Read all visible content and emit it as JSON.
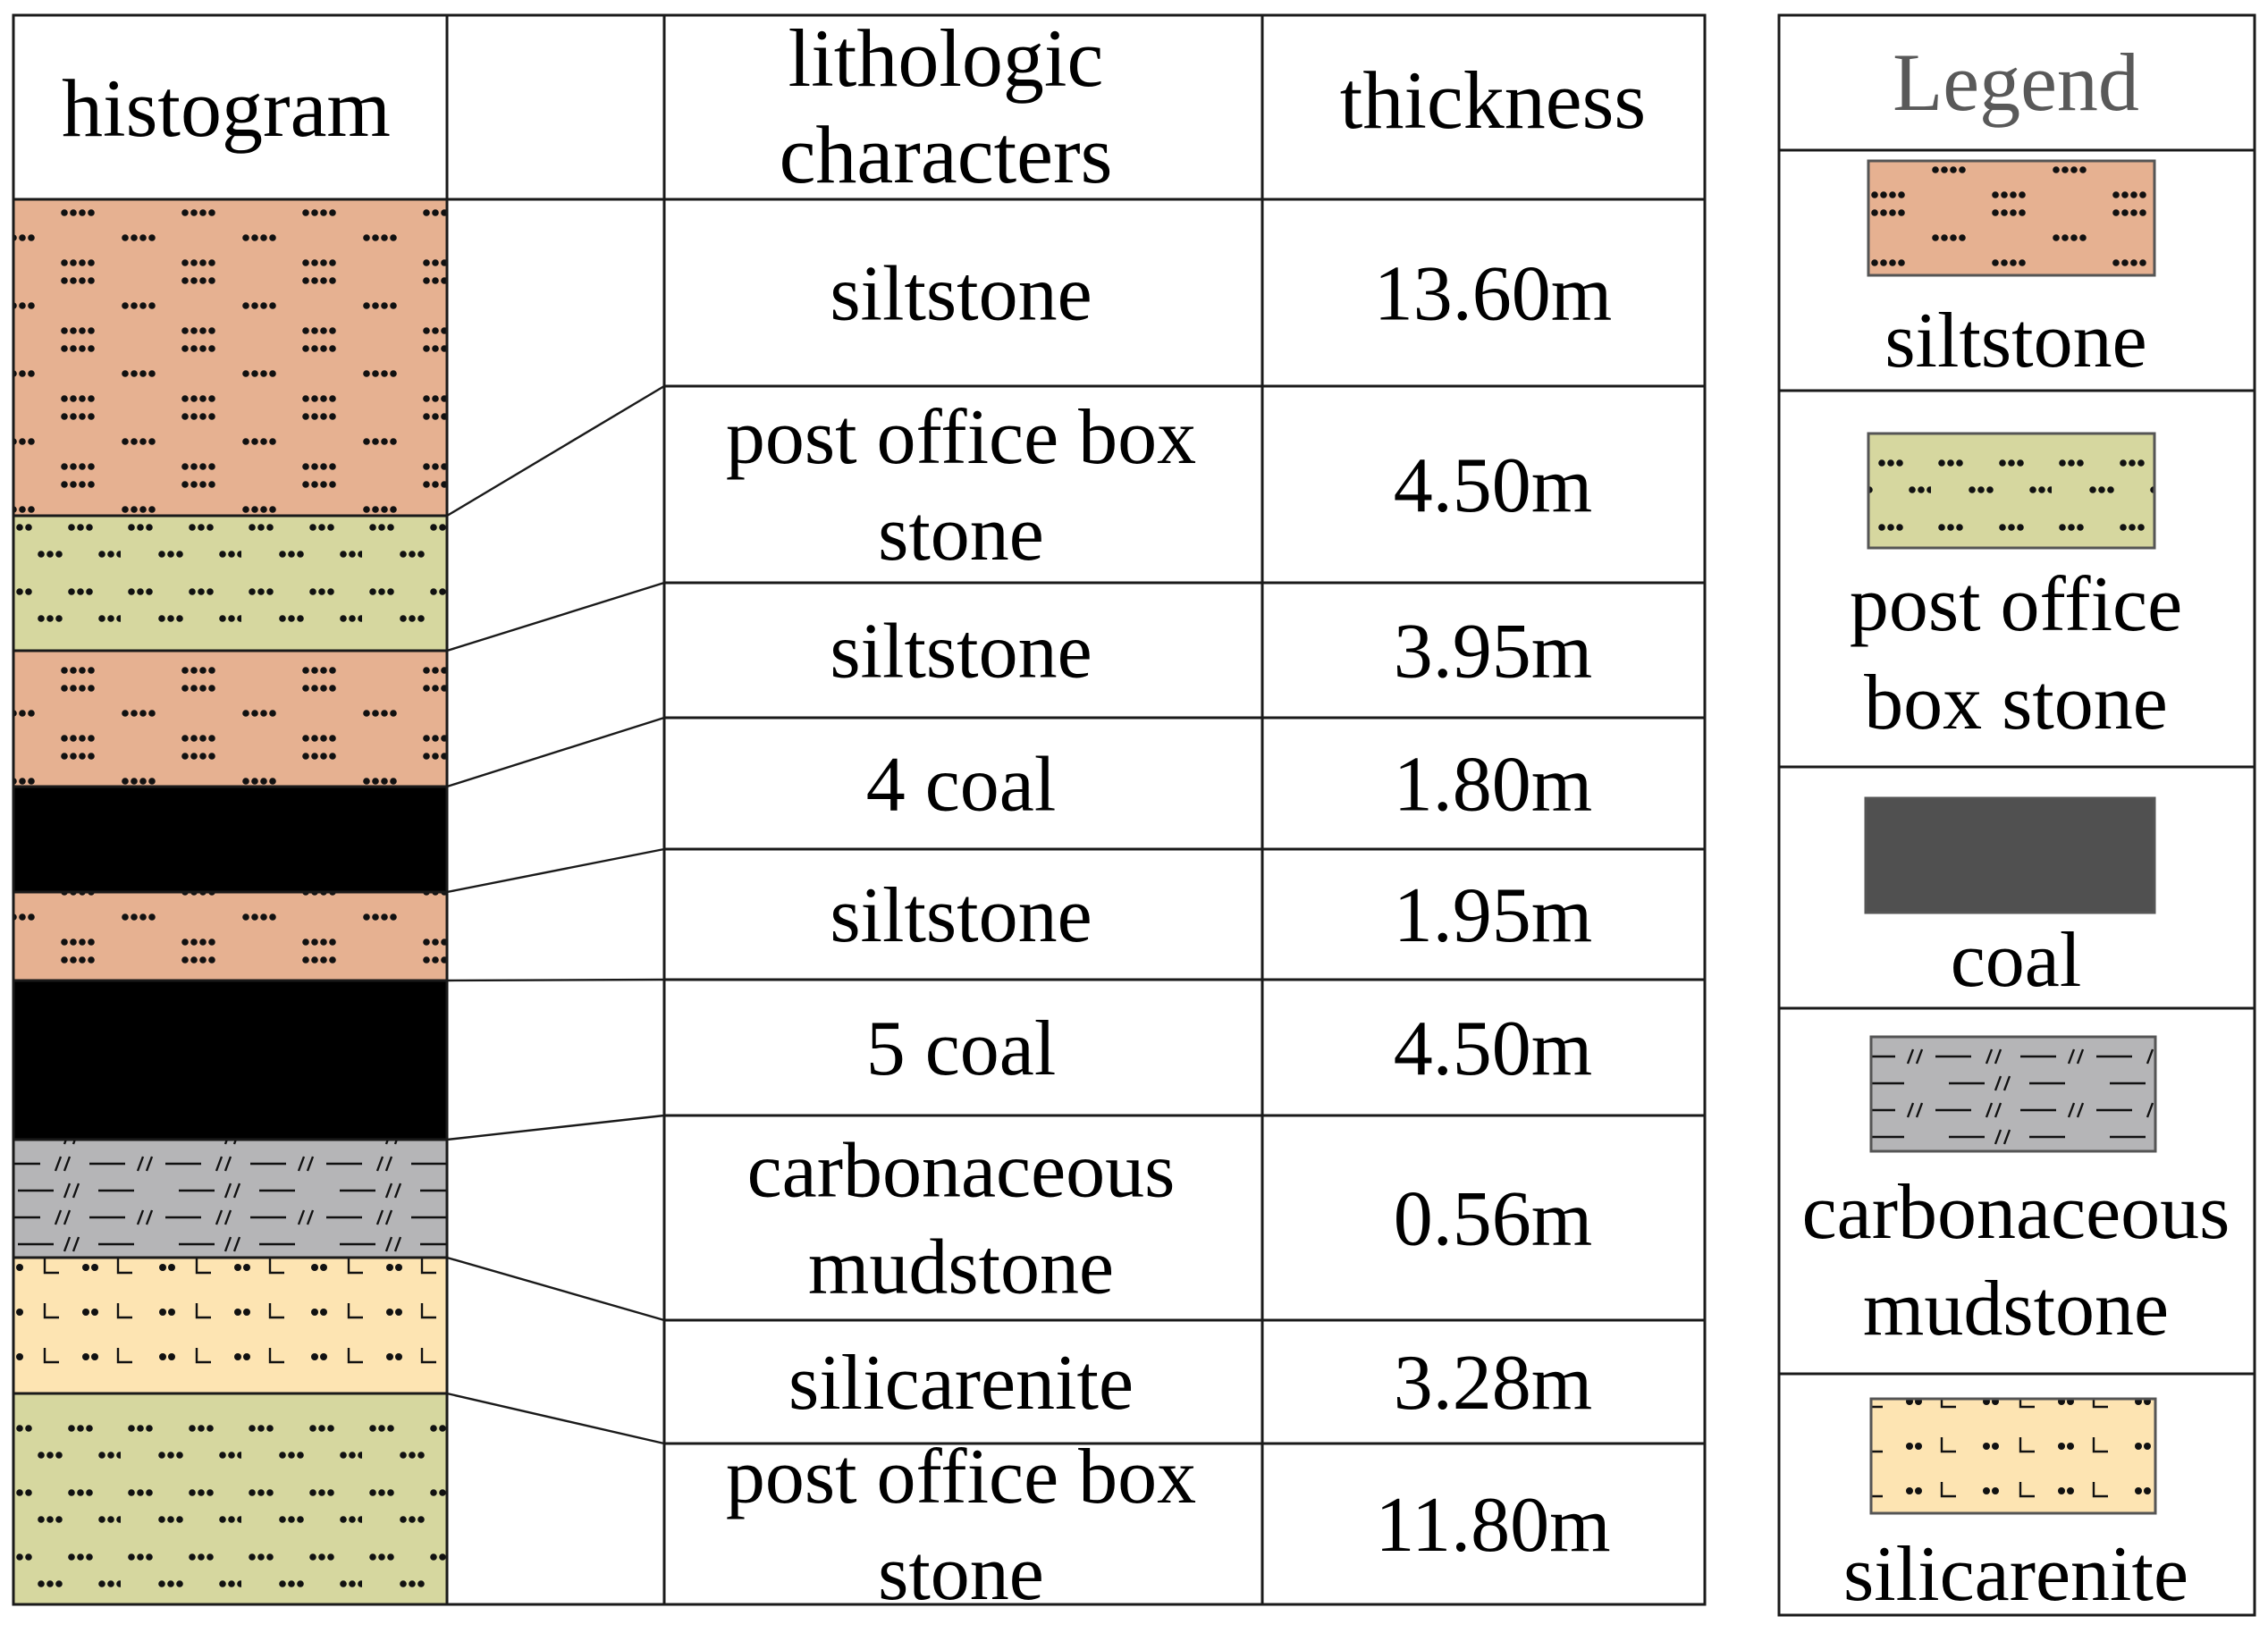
{
  "table": {
    "headers": {
      "histogram": "histogram",
      "connector": "",
      "lithology": [
        "lithologic",
        "characters"
      ],
      "thickness": "thickness"
    },
    "rows": [
      {
        "lithology": [
          "siltstone"
        ],
        "thickness": "13.60m"
      },
      {
        "lithology": [
          "post office box",
          "stone"
        ],
        "thickness": "4.50m"
      },
      {
        "lithology": [
          "siltstone"
        ],
        "thickness": "3.95m"
      },
      {
        "lithology": [
          "4 coal"
        ],
        "thickness": "1.80m"
      },
      {
        "lithology": [
          "siltstone"
        ],
        "thickness": "1.95m"
      },
      {
        "lithology": [
          "5 coal"
        ],
        "thickness": "4.50m"
      },
      {
        "lithology": [
          "carbonaceous",
          "mudstone"
        ],
        "thickness": "0.56m"
      },
      {
        "lithology": [
          "silicarenite"
        ],
        "thickness": "3.28m"
      },
      {
        "lithology": [
          "post office box",
          "stone"
        ],
        "thickness": "11.80m"
      }
    ]
  },
  "histogram_layers": [
    {
      "rock": "siltstone",
      "thickness": 13.6
    },
    {
      "rock": "post office box stone",
      "thickness": 4.5
    },
    {
      "rock": "siltstone",
      "thickness": 3.95
    },
    {
      "rock": "coal",
      "thickness": 1.8
    },
    {
      "rock": "siltstone",
      "thickness": 1.95
    },
    {
      "rock": "coal",
      "thickness": 4.5
    },
    {
      "rock": "carbonaceous mudstone",
      "thickness": 0.56
    },
    {
      "rock": "silicarenite",
      "thickness": 3.28
    },
    {
      "rock": "post office box stone",
      "thickness": 11.8
    }
  ],
  "legend": {
    "title": "Legend",
    "items": [
      {
        "label": [
          "siltstone"
        ],
        "pattern": "siltstone"
      },
      {
        "label": [
          "post office",
          "box stone"
        ],
        "pattern": "pobox"
      },
      {
        "label": [
          "coal"
        ],
        "pattern": "coal-legend"
      },
      {
        "label": [
          "carbonaceous",
          "mudstone"
        ],
        "pattern": "carb"
      },
      {
        "label": [
          "silicarenite"
        ],
        "pattern": "silic"
      }
    ]
  },
  "colors": {
    "siltstone": "#e6b191",
    "pobox": "#d6d79f",
    "coal": "#000000",
    "coal_legend": "#505050",
    "carbonaceous": "#b5b5b7",
    "silicarenite": "#fde4b2",
    "line": "#1a1a1a",
    "legend_title": "#595959"
  }
}
